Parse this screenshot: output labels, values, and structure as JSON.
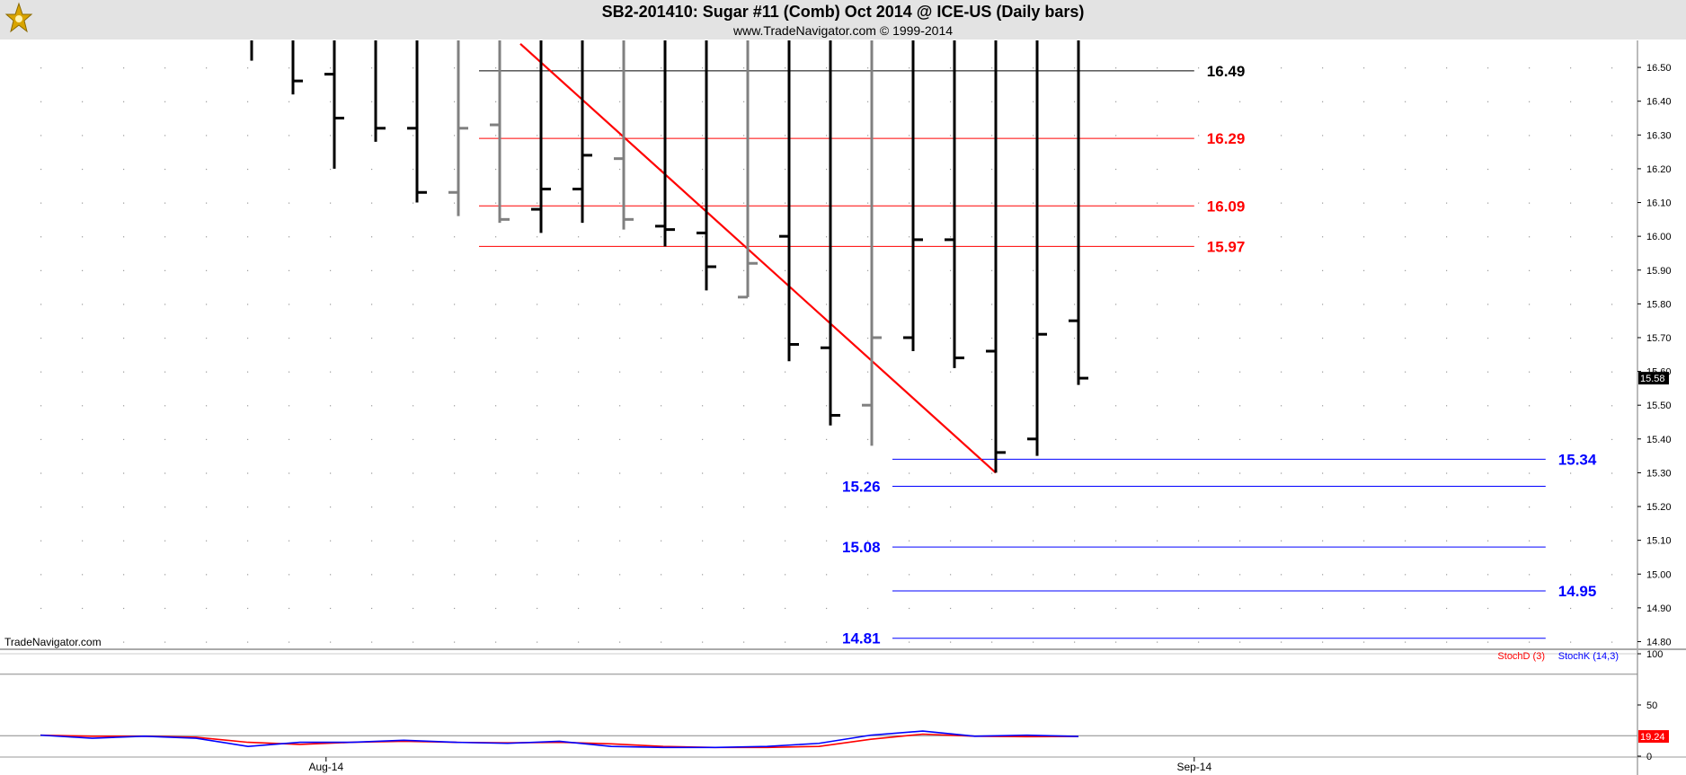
{
  "window": {
    "title": "SB2-201410:  Sugar #11 (Comb) Oct 2014 @ ICE-US  (Daily bars)",
    "subtitle": "www.TradeNavigator.com © 1999-2014",
    "watermark": "TradeNavigator.com",
    "logo_icon": "trade-navigator-logo-icon"
  },
  "colors": {
    "up_bar": "#000000",
    "gray_bar": "#808080",
    "trendline": "#ff0000",
    "level_black": "#000000",
    "level_red": "#ff0000",
    "level_blue": "#0000ff",
    "stoch_d": "#ff0000",
    "stoch_k": "#0000ff",
    "title_bg": "#e3e3e3"
  },
  "chart_data": [
    {
      "type": "ohlc",
      "title": "SB2-201410:  Sugar #11 (Comb) Oct 2014 @ ICE-US  (Daily bars)",
      "y_ticks": [
        "16.50",
        "16.40",
        "16.30",
        "16.20",
        "16.10",
        "16.00",
        "15.90",
        "15.80",
        "15.70",
        "15.60",
        "15.50",
        "15.40",
        "15.30",
        "15.20",
        "15.10",
        "15.00",
        "14.90",
        "14.80"
      ],
      "ylim": [
        14.78,
        16.58
      ],
      "x_ticks": [
        {
          "label": "Aug-14",
          "bar": 1.8
        },
        {
          "label": "Sep-14",
          "bar": 22.8
        }
      ],
      "last_price": "15.58",
      "bars": [
        {
          "o": null,
          "h": 16.57,
          "l": 16.52,
          "c": null,
          "color": "black"
        },
        {
          "o": null,
          "h": 16.57,
          "l": 16.42,
          "c": 16.46,
          "color": "black"
        },
        {
          "o": 16.48,
          "h": 16.49,
          "l": 16.2,
          "c": 16.35,
          "color": "black"
        },
        {
          "o": null,
          "h": 16.57,
          "l": 16.28,
          "c": 16.32,
          "color": "black"
        },
        {
          "o": 16.32,
          "h": 16.33,
          "l": 16.1,
          "c": 16.13,
          "color": "black"
        },
        {
          "o": 16.13,
          "h": 16.44,
          "l": 16.06,
          "c": 16.32,
          "color": "gray"
        },
        {
          "o": 16.33,
          "h": 16.57,
          "l": 16.04,
          "c": 16.05,
          "color": "gray"
        },
        {
          "o": 16.08,
          "h": 16.2,
          "l": 16.01,
          "c": 16.14,
          "color": "black"
        },
        {
          "o": 16.14,
          "h": 16.37,
          "l": 16.04,
          "c": 16.24,
          "color": "black"
        },
        {
          "o": 16.23,
          "h": 16.43,
          "l": 16.02,
          "c": 16.05,
          "color": "gray"
        },
        {
          "o": 16.03,
          "h": 16.23,
          "l": 15.97,
          "c": 16.02,
          "color": "black"
        },
        {
          "o": 16.01,
          "h": 16.02,
          "l": 15.84,
          "c": 15.91,
          "color": "black"
        },
        {
          "o": 15.82,
          "h": 16.05,
          "l": 15.82,
          "c": 15.92,
          "color": "gray"
        },
        {
          "o": 16.0,
          "h": 16.01,
          "l": 15.63,
          "c": 15.68,
          "color": "black"
        },
        {
          "o": 15.67,
          "h": 15.69,
          "l": 15.44,
          "c": 15.47,
          "color": "black"
        },
        {
          "o": 15.5,
          "h": 15.77,
          "l": 15.38,
          "c": 15.7,
          "color": "gray"
        },
        {
          "o": 15.7,
          "h": 16.05,
          "l": 15.66,
          "c": 15.99,
          "color": "black"
        },
        {
          "o": 15.99,
          "h": 16.05,
          "l": 15.61,
          "c": 15.64,
          "color": "black"
        },
        {
          "o": 15.66,
          "h": 15.74,
          "l": 15.3,
          "c": 15.36,
          "color": "black"
        },
        {
          "o": 15.4,
          "h": 15.75,
          "l": 15.35,
          "c": 15.71,
          "color": "black"
        },
        {
          "o": 15.75,
          "h": 15.97,
          "l": 15.56,
          "c": 15.58,
          "color": "black"
        }
      ],
      "trendline": {
        "from": {
          "bar": 6.5,
          "price": 16.57
        },
        "to": {
          "bar": 18.0,
          "price": 15.3
        }
      },
      "levels": [
        {
          "label": "16.49",
          "value": 16.49,
          "color": "black",
          "from_bar": 6,
          "to_bar": 22.8,
          "label_side": "right"
        },
        {
          "label": "16.29",
          "value": 16.29,
          "color": "red",
          "from_bar": 6,
          "to_bar": 22.8,
          "label_side": "right"
        },
        {
          "label": "16.09",
          "value": 16.09,
          "color": "red",
          "from_bar": 6,
          "to_bar": 22.8,
          "label_side": "right"
        },
        {
          "label": "15.97",
          "value": 15.97,
          "color": "red",
          "from_bar": 6,
          "to_bar": 22.8,
          "label_side": "right"
        },
        {
          "label": "15.34",
          "value": 15.34,
          "color": "blue",
          "from_bar": 16,
          "to_bar": 31.3,
          "label_side": "right"
        },
        {
          "label": "15.26",
          "value": 15.26,
          "color": "blue",
          "from_bar": 16,
          "to_bar": 31.3,
          "label_side": "left"
        },
        {
          "label": "15.08",
          "value": 15.08,
          "color": "blue",
          "from_bar": 16,
          "to_bar": 31.3,
          "label_side": "left"
        },
        {
          "label": "14.95",
          "value": 14.95,
          "color": "blue",
          "from_bar": 16,
          "to_bar": 31.3,
          "label_side": "right"
        },
        {
          "label": "14.81",
          "value": 14.81,
          "color": "blue",
          "from_bar": 16,
          "to_bar": 31.3,
          "label_side": "left"
        }
      ],
      "grid": "dotted"
    },
    {
      "type": "line",
      "series": [
        {
          "name": "StochD (3)",
          "values": [
            20.5,
            19.5,
            19.5,
            18.5,
            13.5,
            11.5,
            13.5,
            14.5,
            13.5,
            13.0,
            13.5,
            12,
            9.5,
            8.5,
            8.5,
            9.5,
            16.5,
            21.5,
            19.5,
            19.0,
            19.24
          ]
        },
        {
          "name": "StochK (14,3)",
          "values": [
            20.5,
            17.5,
            19.5,
            17.5,
            9.5,
            13.5,
            13.5,
            15.5,
            13.5,
            12.5,
            14.5,
            9.5,
            8.5,
            8.5,
            9.5,
            12.5,
            20.5,
            24.5,
            19.5,
            20.5,
            19.24
          ]
        }
      ],
      "y_ticks": [
        "100",
        "50",
        "0"
      ],
      "ylim": [
        0,
        100
      ],
      "last_value": "19.24",
      "reference_lines": [
        80,
        20
      ]
    }
  ]
}
